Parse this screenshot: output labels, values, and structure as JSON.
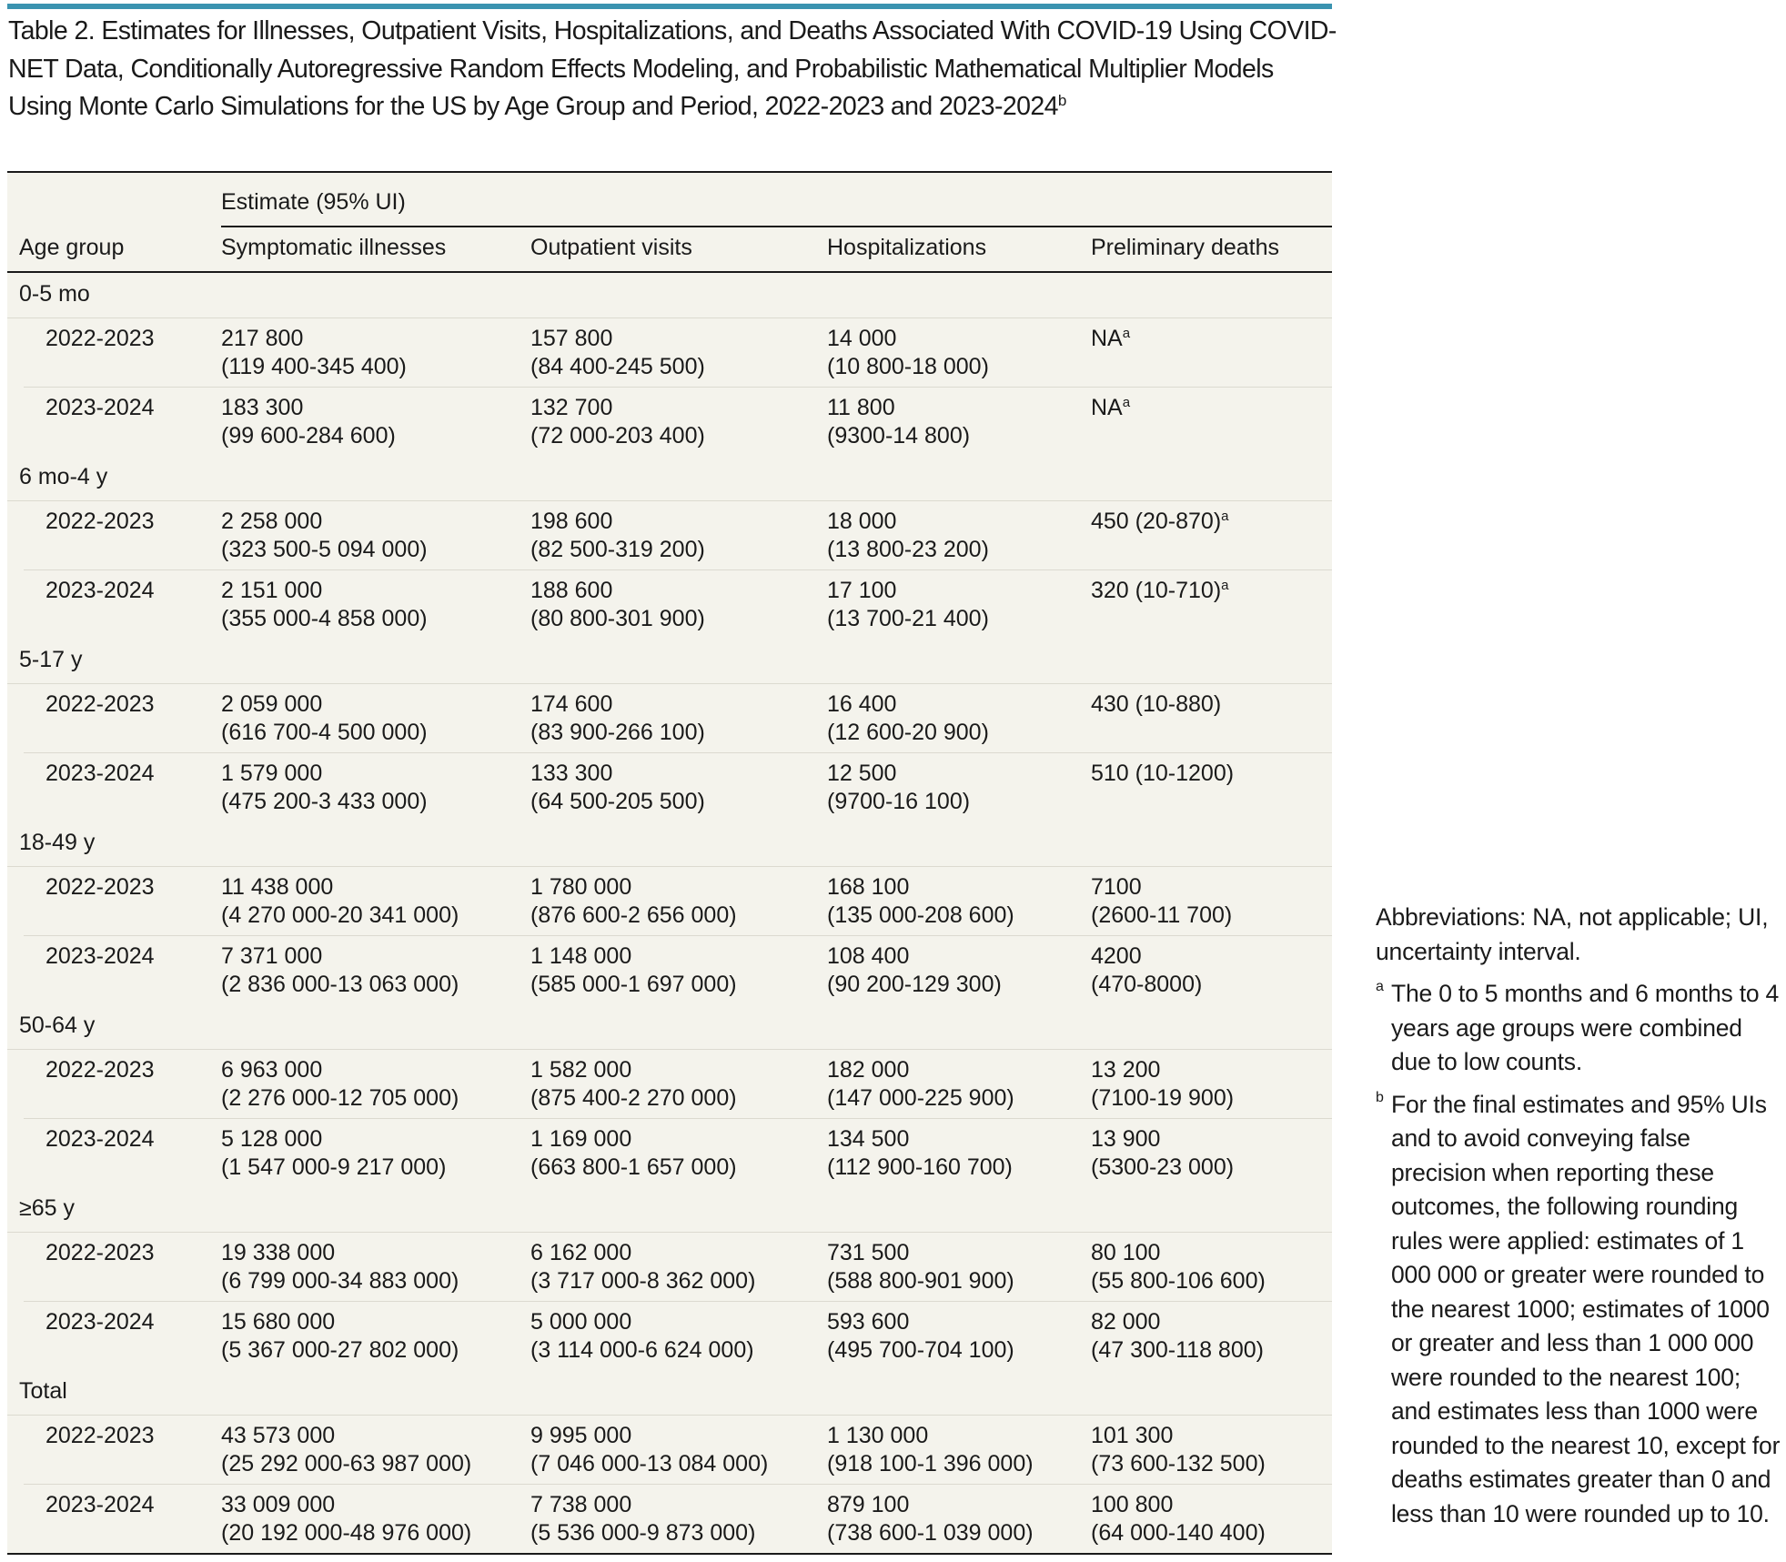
{
  "accent_color": "#3a93b0",
  "title": {
    "text": "Table 2. Estimates for Illnesses, Outpatient Visits, Hospitalizations, and Deaths Associated With COVID-19 Using COVID-NET Data, Conditionally Autoregressive Random Effects Modeling, and Probabilistic Mathematical Multiplier Models Using Monte Carlo Simulations for the US by Age Group and Period, 2022-2023 and 2023-2024",
    "sup": "b"
  },
  "header": {
    "span_label": "Estimate (95% UI)",
    "columns": [
      "Age group",
      "Symptomatic illnesses",
      "Outpatient visits",
      "Hospitalizations",
      "Preliminary deaths"
    ]
  },
  "groups": [
    {
      "label": "0-5 mo",
      "rows": [
        {
          "period": "2022-2023",
          "cells": [
            {
              "est": "217 800",
              "ui": "(119 400-345 400)"
            },
            {
              "est": "157 800",
              "ui": "(84 400-245 500)"
            },
            {
              "est": "14 000",
              "ui": "(10 800-18 000)"
            },
            {
              "est": "NA",
              "ui": "",
              "sup": "a"
            }
          ]
        },
        {
          "period": "2023-2024",
          "cells": [
            {
              "est": "183 300",
              "ui": "(99 600-284 600)"
            },
            {
              "est": "132 700",
              "ui": "(72 000-203 400)"
            },
            {
              "est": "11 800",
              "ui": "(9300-14 800)"
            },
            {
              "est": "NA",
              "ui": "",
              "sup": "a"
            }
          ]
        }
      ]
    },
    {
      "label": "6 mo-4 y",
      "rows": [
        {
          "period": "2022-2023",
          "cells": [
            {
              "est": "2 258 000",
              "ui": "(323 500-5 094 000)"
            },
            {
              "est": "198 600",
              "ui": "(82 500-319 200)"
            },
            {
              "est": "18 000",
              "ui": "(13 800-23 200)"
            },
            {
              "est": "450 (20-870)",
              "ui": "",
              "sup": "a"
            }
          ]
        },
        {
          "period": "2023-2024",
          "cells": [
            {
              "est": "2 151 000",
              "ui": "(355 000-4 858 000)"
            },
            {
              "est": "188 600",
              "ui": "(80 800-301 900)"
            },
            {
              "est": "17 100",
              "ui": "(13 700-21 400)"
            },
            {
              "est": "320 (10-710)",
              "ui": "",
              "sup": "a"
            }
          ]
        }
      ]
    },
    {
      "label": "5-17 y",
      "rows": [
        {
          "period": "2022-2023",
          "cells": [
            {
              "est": "2 059 000",
              "ui": "(616 700-4 500 000)"
            },
            {
              "est": "174 600",
              "ui": "(83 900-266 100)"
            },
            {
              "est": "16 400",
              "ui": "(12 600-20 900)"
            },
            {
              "est": "430 (10-880)",
              "ui": ""
            }
          ]
        },
        {
          "period": "2023-2024",
          "cells": [
            {
              "est": "1 579 000",
              "ui": "(475 200-3 433 000)"
            },
            {
              "est": "133 300",
              "ui": "(64 500-205 500)"
            },
            {
              "est": "12 500",
              "ui": "(9700-16 100)"
            },
            {
              "est": "510 (10-1200)",
              "ui": ""
            }
          ]
        }
      ]
    },
    {
      "label": "18-49 y",
      "rows": [
        {
          "period": "2022-2023",
          "cells": [
            {
              "est": "11 438 000",
              "ui": "(4 270 000-20 341 000)"
            },
            {
              "est": "1 780 000",
              "ui": "(876 600-2 656 000)"
            },
            {
              "est": "168 100",
              "ui": "(135 000-208 600)"
            },
            {
              "est": "7100",
              "ui": "(2600-11 700)"
            }
          ]
        },
        {
          "period": "2023-2024",
          "cells": [
            {
              "est": "7 371 000",
              "ui": "(2 836 000-13 063 000)"
            },
            {
              "est": "1 148 000",
              "ui": "(585 000-1 697 000)"
            },
            {
              "est": "108 400",
              "ui": "(90 200-129 300)"
            },
            {
              "est": "4200",
              "ui": "(470-8000)"
            }
          ]
        }
      ]
    },
    {
      "label": "50-64 y",
      "rows": [
        {
          "period": "2022-2023",
          "cells": [
            {
              "est": "6 963 000",
              "ui": "(2 276 000-12 705 000)"
            },
            {
              "est": "1 582 000",
              "ui": "(875 400-2 270 000)"
            },
            {
              "est": "182 000",
              "ui": "(147 000-225 900)"
            },
            {
              "est": "13 200",
              "ui": "(7100-19 900)"
            }
          ]
        },
        {
          "period": "2023-2024",
          "cells": [
            {
              "est": "5 128 000",
              "ui": "(1 547 000-9 217 000)"
            },
            {
              "est": "1 169 000",
              "ui": "(663 800-1 657 000)"
            },
            {
              "est": "134 500",
              "ui": "(112 900-160 700)"
            },
            {
              "est": "13 900",
              "ui": "(5300-23 000)"
            }
          ]
        }
      ]
    },
    {
      "label": "≥65 y",
      "rows": [
        {
          "period": "2022-2023",
          "cells": [
            {
              "est": "19 338 000",
              "ui": "(6 799 000-34 883 000)"
            },
            {
              "est": "6 162 000",
              "ui": "(3 717 000-8 362 000)"
            },
            {
              "est": "731 500",
              "ui": "(588 800-901 900)"
            },
            {
              "est": "80 100",
              "ui": "(55 800-106 600)"
            }
          ]
        },
        {
          "period": "2023-2024",
          "cells": [
            {
              "est": "15 680 000",
              "ui": "(5 367 000-27 802 000)"
            },
            {
              "est": "5 000 000",
              "ui": "(3 114 000-6 624 000)"
            },
            {
              "est": "593 600",
              "ui": "(495 700-704 100)"
            },
            {
              "est": "82 000",
              "ui": "(47 300-118 800)"
            }
          ]
        }
      ]
    },
    {
      "label": "Total",
      "rows": [
        {
          "period": "2022-2023",
          "cells": [
            {
              "est": "43 573 000",
              "ui": "(25 292 000-63 987 000)"
            },
            {
              "est": "9 995 000",
              "ui": "(7 046 000-13 084 000)"
            },
            {
              "est": "1 130 000",
              "ui": "(918 100-1 396 000)"
            },
            {
              "est": "101 300",
              "ui": "(73 600-132 500)"
            }
          ]
        },
        {
          "period": "2023-2024",
          "cells": [
            {
              "est": "33 009 000",
              "ui": "(20 192 000-48 976 000)"
            },
            {
              "est": "7 738 000",
              "ui": "(5 536 000-9 873 000)"
            },
            {
              "est": "879 100",
              "ui": "(738 600-1 039 000)"
            },
            {
              "est": "100 800",
              "ui": "(64 000-140 400)"
            }
          ]
        }
      ]
    }
  ],
  "notes": {
    "abbreviations": "Abbreviations: NA, not applicable; UI, uncertainty interval.",
    "footnotes": [
      {
        "mark": "a",
        "text": "The 0 to 5 months and 6 months to 4 years age groups were combined due to low counts."
      },
      {
        "mark": "b",
        "text": "For the final estimates and 95% UIs and to avoid conveying false precision when reporting these outcomes, the following rounding rules were applied: estimates of 1 000 000 or greater were rounded to the nearest 1000; estimates of 1000 or greater and less than 1 000 000 were rounded to the nearest 100; and estimates less than 1000 were rounded to the nearest 10, except for deaths estimates greater than 0 and less than 10 were rounded up to 10."
      }
    ]
  }
}
